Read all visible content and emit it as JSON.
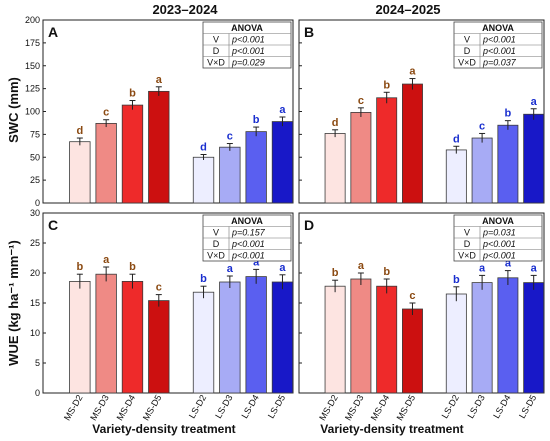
{
  "figure": {
    "col_titles": [
      "2023–2024",
      "2024–2025"
    ],
    "y_titles": [
      "SWC (mm)",
      "WUE (kg ha⁻¹ mm⁻¹)"
    ],
    "x_title": "Variety-density treatment",
    "anova_title": "ANOVA",
    "colors": {
      "MS-D2": "#fde4e1",
      "MS-D3": "#ef8a85",
      "MS-D4": "#ee2a2a",
      "MS-D5": "#cc1010",
      "LS-D2": "#edeeff",
      "LS-D3": "#a7abf5",
      "LS-D4": "#5a5ff0",
      "LS-D5": "#1818c8",
      "ms_letter": "#8b4a12",
      "ls_letter": "#1a2fcf"
    }
  },
  "chart_data": [
    {
      "panel": "A",
      "type": "bar",
      "categories": [
        "MS-D2",
        "MS-D3",
        "MS-D4",
        "MS-D5",
        "LS-D2",
        "LS-D3",
        "LS-D4",
        "LS-D5"
      ],
      "values": [
        67,
        87,
        107,
        122,
        50,
        61,
        78,
        89
      ],
      "errors": [
        4,
        4,
        5,
        5,
        3,
        4,
        5,
        5
      ],
      "letters": [
        "d",
        "c",
        "b",
        "a",
        "d",
        "c",
        "b",
        "a"
      ],
      "ylim": [
        0,
        200
      ],
      "yticks": [
        0,
        25,
        50,
        75,
        100,
        125,
        150,
        175,
        200
      ],
      "anova": [
        [
          "V",
          "p<0.001"
        ],
        [
          "D",
          "p<0.001"
        ],
        [
          "V×D",
          "p=0.029"
        ]
      ]
    },
    {
      "panel": "B",
      "type": "bar",
      "categories": [
        "MS-D2",
        "MS-D3",
        "MS-D4",
        "MS-D5",
        "LS-D2",
        "LS-D3",
        "LS-D4",
        "LS-D5"
      ],
      "values": [
        76,
        99,
        115,
        130,
        58,
        71,
        85,
        97
      ],
      "errors": [
        4,
        5,
        6,
        6,
        4,
        5,
        5,
        6
      ],
      "letters": [
        "d",
        "c",
        "b",
        "a",
        "d",
        "c",
        "b",
        "a"
      ],
      "ylim": [
        0,
        200
      ],
      "yticks": [
        0,
        25,
        50,
        75,
        100,
        125,
        150,
        175,
        200
      ],
      "anova": [
        [
          "V",
          "p<0.001"
        ],
        [
          "D",
          "p<0.001"
        ],
        [
          "V×D",
          "p=0.037"
        ]
      ]
    },
    {
      "panel": "C",
      "type": "bar",
      "categories": [
        "MS-D2",
        "MS-D3",
        "MS-D4",
        "MS-D5",
        "LS-D2",
        "LS-D3",
        "LS-D4",
        "LS-D5"
      ],
      "values": [
        18.6,
        19.8,
        18.6,
        15.4,
        16.8,
        18.5,
        19.4,
        18.5
      ],
      "errors": [
        1.2,
        1.2,
        1.2,
        1.0,
        1.0,
        1.0,
        1.2,
        1.2
      ],
      "letters": [
        "b",
        "a",
        "b",
        "c",
        "b",
        "a",
        "a",
        "a"
      ],
      "ylim": [
        0,
        30
      ],
      "yticks": [
        0,
        5,
        10,
        15,
        20,
        25,
        30
      ],
      "anova": [
        [
          "V",
          "p=0.157"
        ],
        [
          "D",
          "p<0.001"
        ],
        [
          "V×D",
          "p<0.001"
        ]
      ]
    },
    {
      "panel": "D",
      "type": "bar",
      "categories": [
        "MS-D2",
        "MS-D3",
        "MS-D4",
        "MS-D5",
        "LS-D2",
        "LS-D3",
        "LS-D4",
        "LS-D5"
      ],
      "values": [
        17.8,
        19.0,
        17.8,
        14.0,
        16.5,
        18.4,
        19.2,
        18.4
      ],
      "errors": [
        1.0,
        1.0,
        1.2,
        1.0,
        1.2,
        1.2,
        1.2,
        1.2
      ],
      "letters": [
        "b",
        "a",
        "b",
        "c",
        "b",
        "a",
        "a",
        "a"
      ],
      "ylim": [
        0,
        30
      ],
      "yticks": [
        0,
        5,
        10,
        15,
        20,
        25,
        30
      ],
      "anova": [
        [
          "V",
          "p=0.031"
        ],
        [
          "D",
          "p<0.001"
        ],
        [
          "V×D",
          "p<0.001"
        ]
      ]
    }
  ]
}
